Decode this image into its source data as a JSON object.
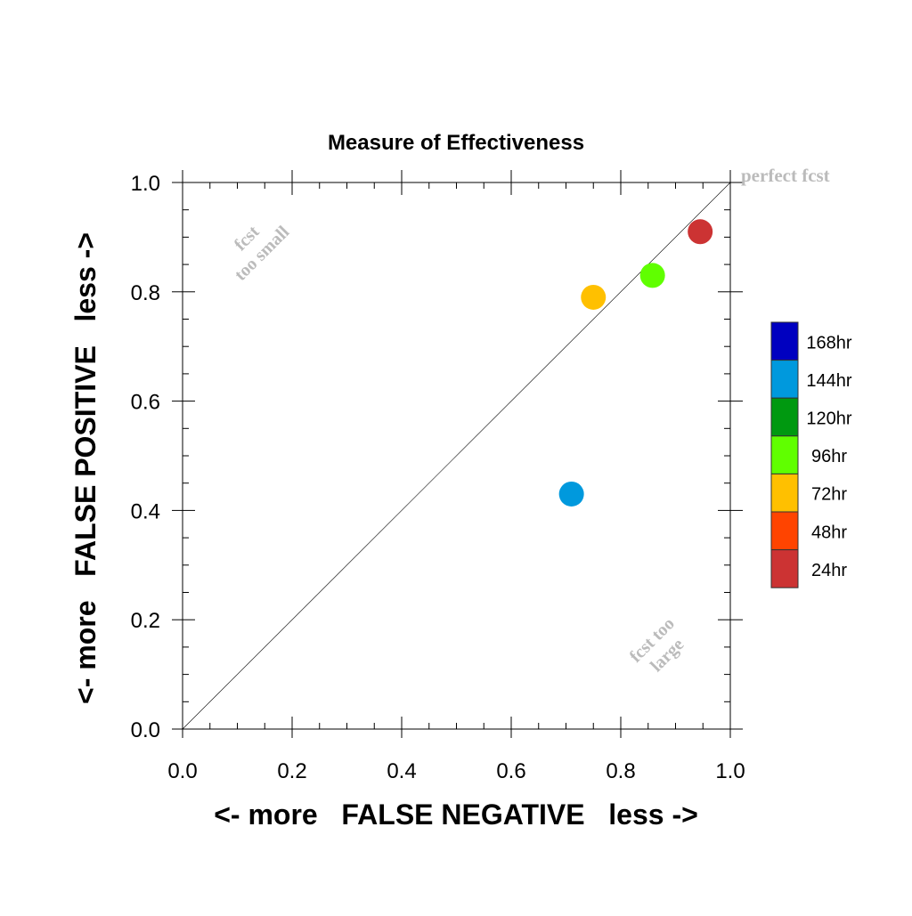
{
  "chart_data": {
    "type": "scatter",
    "title": "Measure of Effectiveness",
    "xlabel": "<- more   FALSE NEGATIVE   less ->",
    "ylabel": "<- more   FALSE POSITIVE   less ->",
    "xlim": [
      0.0,
      1.0
    ],
    "ylim": [
      0.0,
      1.0
    ],
    "x_ticks": [
      "0.0",
      "0.2",
      "0.4",
      "0.6",
      "0.8",
      "1.0"
    ],
    "y_ticks": [
      "0.0",
      "0.2",
      "0.4",
      "0.6",
      "0.8",
      "1.0"
    ],
    "grid": false,
    "reference_line": {
      "label": "perfect fcst",
      "from": [
        0,
        0
      ],
      "to": [
        1,
        1
      ]
    },
    "annotations": [
      {
        "name": "fcst-too-small-annotation",
        "lines": [
          "fcst",
          "too small"
        ],
        "x": 0.13,
        "y": 0.885,
        "rotation": -45
      },
      {
        "name": "fcst-too-large-annotation",
        "lines": [
          "fcst too",
          "large"
        ],
        "x": 0.87,
        "y": 0.15,
        "rotation": -45
      }
    ],
    "points": [
      {
        "series": "144hr",
        "x": 0.71,
        "y": 0.43
      },
      {
        "series": "72hr",
        "x": 0.75,
        "y": 0.79
      },
      {
        "series": "96hr",
        "x": 0.858,
        "y": 0.83
      },
      {
        "series": "24hr",
        "x": 0.945,
        "y": 0.91
      }
    ],
    "legend": {
      "placement": "right",
      "entries": [
        {
          "name": "168hr",
          "color": "#0000c0"
        },
        {
          "name": "144hr",
          "color": "#0099dd"
        },
        {
          "name": "120hr",
          "color": "#009910"
        },
        {
          "name": "96hr",
          "color": "#60ff00"
        },
        {
          "name": "72hr",
          "color": "#ffc000"
        },
        {
          "name": "48hr",
          "color": "#ff4400"
        },
        {
          "name": "24hr",
          "color": "#cc3333"
        }
      ]
    }
  }
}
